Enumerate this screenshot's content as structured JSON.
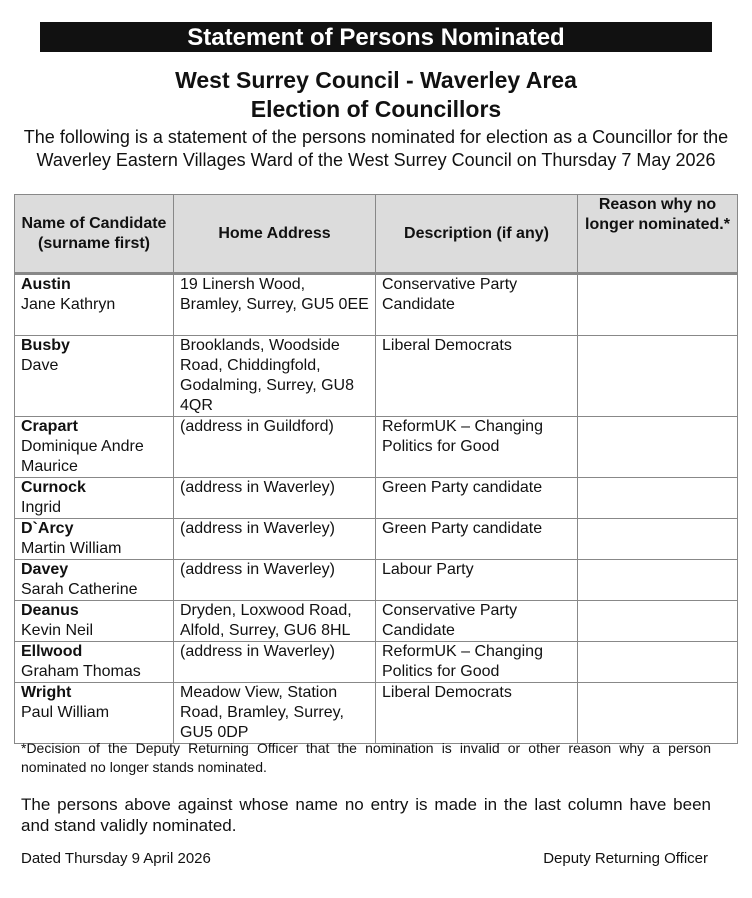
{
  "banner": "Statement of Persons Nominated",
  "heading1": "West Surrey Council - Waverley Area",
  "heading2": "Election of Councillors",
  "intro": "The following is a statement of the persons nominated for election as a Councillor for the Waverley Eastern Villages Ward of the West Surrey Council on Thursday 7 May 2026",
  "table": {
    "headers": [
      "Name of Candidate (surname first)",
      "Home Address",
      "Description (if any)",
      "Reason why no longer nominated.*"
    ],
    "rows": [
      {
        "surname": "Austin",
        "forenames": "Jane Kathryn",
        "address": "19 Linersh Wood, Bramley, Surrey, GU5 0EE",
        "description": "Conservative Party Candidate",
        "reason": ""
      },
      {
        "surname": "Busby",
        "forenames": "Dave",
        "address": "Brooklands, Woodside Road, Chiddingfold, Godalming, Surrey, GU8 4QR",
        "description": "Liberal Democrats",
        "reason": ""
      },
      {
        "surname": "Crapart",
        "forenames": "Dominique Andre Maurice",
        "address": "(address in Guildford)",
        "description": "ReformUK – Changing Politics for Good",
        "reason": ""
      },
      {
        "surname": "Curnock",
        "forenames": "Ingrid",
        "address": "(address in Waverley)",
        "description": "Green Party candidate",
        "reason": ""
      },
      {
        "surname": "D`Arcy",
        "forenames": "Martin William",
        "address": "(address in Waverley)",
        "description": "Green Party candidate",
        "reason": ""
      },
      {
        "surname": "Davey",
        "forenames": "Sarah Catherine",
        "address": "(address in Waverley)",
        "description": "Labour Party",
        "reason": ""
      },
      {
        "surname": "Deanus",
        "forenames": "Kevin Neil",
        "address": "Dryden, Loxwood Road, Alfold, Surrey, GU6 8HL",
        "description": "Conservative Party Candidate",
        "reason": ""
      },
      {
        "surname": "Ellwood",
        "forenames": "Graham Thomas",
        "address": "(address in Waverley)",
        "description": "ReformUK – Changing Politics for Good",
        "reason": ""
      },
      {
        "surname": "Wright",
        "forenames": "Paul William",
        "address": "Meadow View, Station Road, Bramley, Surrey, GU5 0DP",
        "description": "Liberal Democrats",
        "reason": ""
      }
    ]
  },
  "footnote": "*Decision of the Deputy Returning Officer that the nomination is invalid or other reason why a person nominated no longer stands nominated.",
  "validity": "The persons above against whose name no entry is made in the last column have been and stand validly nominated.",
  "dated": "Dated Thursday 9 April 2026",
  "signatory": "Deputy Returning Officer"
}
